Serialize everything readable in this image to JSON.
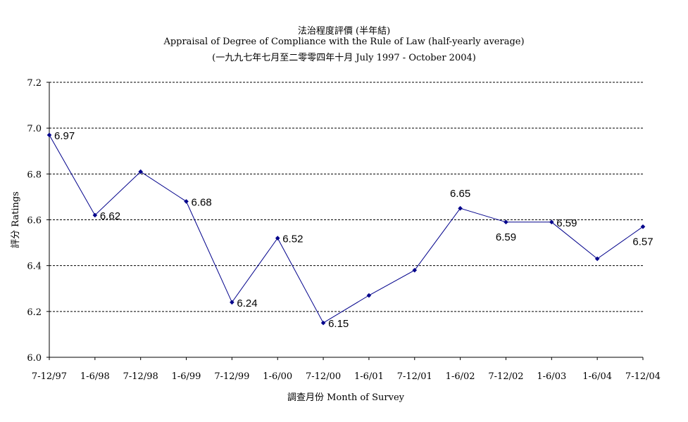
{
  "chart_data": {
    "type": "line",
    "title": "法治程度評價 (半年結)",
    "subtitle": "Appraisal of Degree of Compliance with the Rule of Law (half-yearly average)",
    "period": "(一九九七年七月至二零零四年十月 July 1997 - October 2004)",
    "xlabel": "調查月份 Month of Survey",
    "ylabel": "評分 Ratings",
    "ylim": [
      6.0,
      7.2
    ],
    "yticks": [
      "6.0",
      "6.2",
      "6.4",
      "6.6",
      "6.8",
      "7.0",
      "7.2"
    ],
    "grid": "horizontal dashed",
    "color": "#00008b",
    "categories": [
      "7-12/97",
      "1-6/98",
      "7-12/98",
      "1-6/99",
      "7-12/99",
      "1-6/00",
      "7-12/00",
      "1-6/01",
      "7-12/01",
      "1-6/02",
      "7-12/02",
      "1-6/03",
      "1-6/04",
      "7-12/04"
    ],
    "values": [
      6.97,
      6.62,
      6.81,
      6.68,
      6.24,
      6.52,
      6.15,
      6.27,
      6.38,
      6.65,
      6.59,
      6.59,
      6.43,
      6.57
    ],
    "data_labels": [
      "6.97",
      "6.62",
      "",
      "6.68",
      "6.24",
      "6.52",
      "6.15",
      "",
      "",
      "6.65",
      "6.59",
      "6.59",
      "",
      "6.57"
    ]
  }
}
